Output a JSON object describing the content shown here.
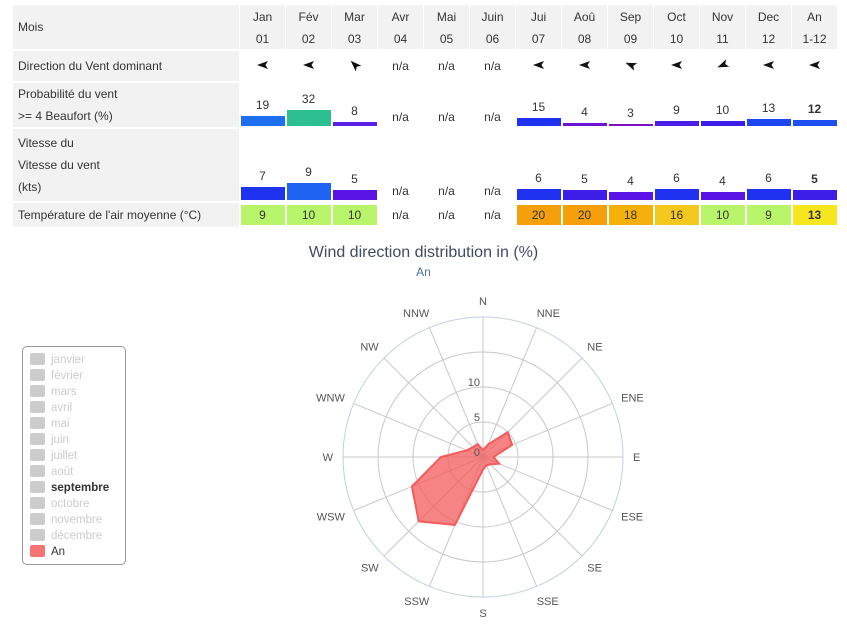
{
  "table": {
    "header_label": "Mois",
    "months": [
      {
        "name": "Jan",
        "num": "01"
      },
      {
        "name": "Fév",
        "num": "02"
      },
      {
        "name": "Mar",
        "num": "03"
      },
      {
        "name": "Avr",
        "num": "04"
      },
      {
        "name": "Mai",
        "num": "05"
      },
      {
        "name": "Juin",
        "num": "06"
      },
      {
        "name": "Jui",
        "num": "07"
      },
      {
        "name": "Aoû",
        "num": "08"
      },
      {
        "name": "Sep",
        "num": "09"
      },
      {
        "name": "Oct",
        "num": "10"
      },
      {
        "name": "Nov",
        "num": "11"
      },
      {
        "name": "Dec",
        "num": "12"
      },
      {
        "name": "An",
        "num": "1-12"
      }
    ],
    "direction_label": "Direction du Vent dominant",
    "directions": [
      "wind-arrow-sw-icon",
      "wind-arrow-sw-icon",
      "wind-arrow-w-icon",
      "n/a",
      "n/a",
      "n/a",
      "wind-arrow-sw-icon",
      "wind-arrow-sw-icon",
      "wind-arrow-wsw-icon",
      "wind-arrow-sw-icon",
      "wind-arrow-ssw-icon",
      "wind-arrow-sw-icon",
      "wind-arrow-sw-icon"
    ],
    "prob_label_1": "Probabilité du vent",
    "prob_label_2": ">= 4 Beaufort (%)",
    "prob": [
      "19",
      "32",
      "8",
      "n/a",
      "n/a",
      "n/a",
      "15",
      "4",
      "3",
      "9",
      "10",
      "13",
      "12"
    ],
    "prob_colors": [
      "#1e6ef0",
      "#2ebf91",
      "#5a1ee6",
      "",
      "",
      "",
      "#1e32f0",
      "#6a14d6",
      "#7a10c8",
      "#4a1ee6",
      "#3c1ee8",
      "#1e46f0",
      "#1e50f0"
    ],
    "speed_label_1": "Vitesse du",
    "speed_label_2": "Vitesse du vent",
    "speed_label_3": "(kts)",
    "speed": [
      "7",
      "9",
      "5",
      "n/a",
      "n/a",
      "n/a",
      "6",
      "5",
      "4",
      "6",
      "4",
      "6",
      "5"
    ],
    "speed_colors": [
      "#1e32f0",
      "#1e64f0",
      "#5a14e6",
      "",
      "",
      "",
      "#1e32f0",
      "#3c1ee8",
      "#5a14e6",
      "#1e32f0",
      "#5a14e6",
      "#1e32f0",
      "#3c1ee8"
    ],
    "temp_label": "Température de l'air moyenne (°C)",
    "temp": [
      "9",
      "10",
      "10",
      "n/a",
      "n/a",
      "n/a",
      "20",
      "20",
      "18",
      "16",
      "10",
      "9",
      "13"
    ],
    "temp_colors": [
      "#b8f56a",
      "#b8f56a",
      "#b8f56a",
      "",
      "",
      "",
      "#f5a00a",
      "#f5a00a",
      "#f5b00a",
      "#f5c81e",
      "#b8f56a",
      "#b8f56a",
      "#f5e61e"
    ]
  },
  "chart_data": {
    "type": "radar",
    "title": "Wind direction distribution in (%)",
    "subtitle": "An",
    "directions": [
      "N",
      "NNE",
      "NE",
      "ENE",
      "E",
      "ESE",
      "SE",
      "SSE",
      "S",
      "SSW",
      "SW",
      "WSW",
      "W",
      "WNW",
      "NW",
      "NNW"
    ],
    "radial_ticks": [
      "0",
      "5",
      "10"
    ],
    "rmax": 20,
    "grid": true,
    "series": [
      {
        "name": "An",
        "color": "#f45b5b",
        "values": [
          1,
          2,
          5,
          4.5,
          1.5,
          2.5,
          1.5,
          1.3,
          1.8,
          10.5,
          13,
          11,
          6,
          2.5,
          2,
          2
        ]
      }
    ]
  },
  "legend": {
    "items": [
      "janvier",
      "février",
      "mars",
      "avril",
      "mai",
      "juin",
      "juillet",
      "août",
      "septembre",
      "octobre",
      "novembre",
      "décembre",
      "An"
    ],
    "active": "septembre",
    "series": "An"
  }
}
